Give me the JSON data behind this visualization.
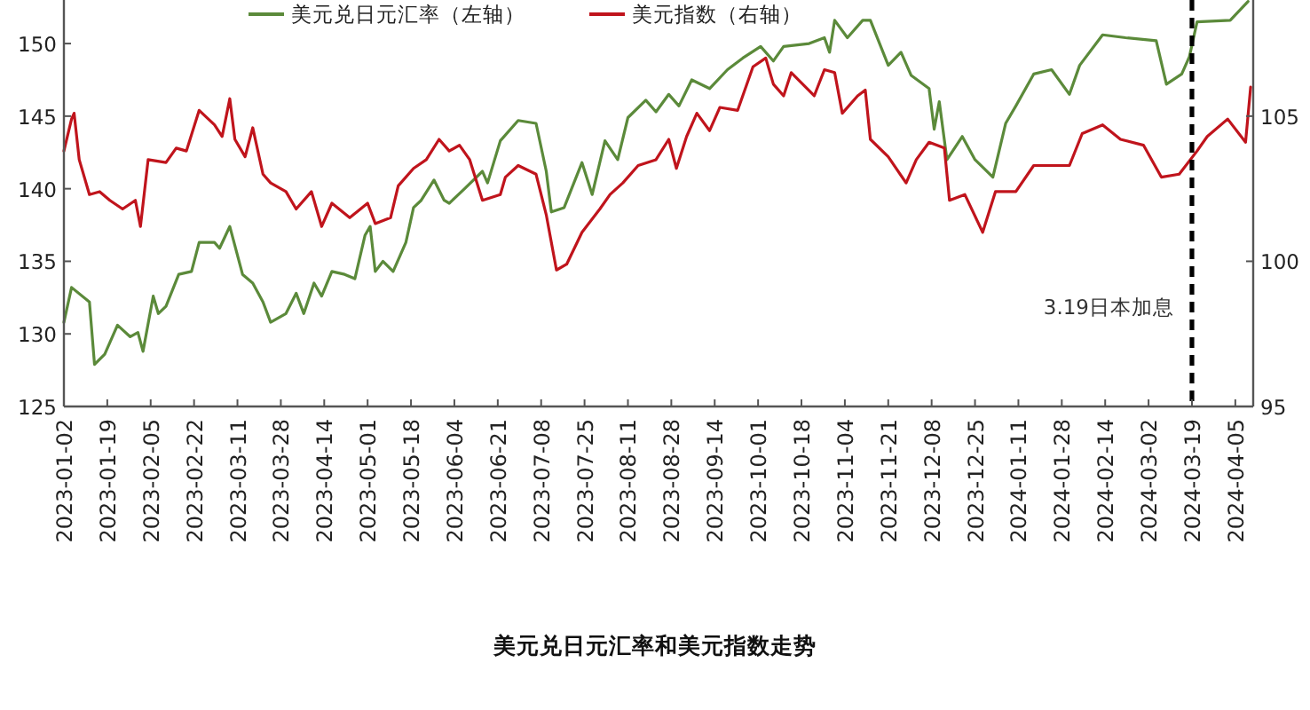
{
  "chart_data": {
    "type": "line",
    "title": "美元兑日元汇率和美元指数走势",
    "legend": "top",
    "grid": false,
    "xlim": [
      "2023-01-02",
      "2024-04-12"
    ],
    "xticks": [
      "2023-01-02",
      "2023-01-19",
      "2023-02-05",
      "2023-02-22",
      "2023-03-11",
      "2023-03-28",
      "2023-04-14",
      "2023-05-01",
      "2023-05-18",
      "2023-06-04",
      "2023-06-21",
      "2023-07-08",
      "2023-07-25",
      "2023-08-11",
      "2023-08-28",
      "2023-09-14",
      "2023-10-01",
      "2023-10-18",
      "2023-11-04",
      "2023-11-21",
      "2023-12-08",
      "2023-12-25",
      "2024-01-11",
      "2024-01-28",
      "2024-02-14",
      "2024-03-02",
      "2024-03-19",
      "2024-04-05"
    ],
    "ylim": [
      125,
      153
    ],
    "yticks": [
      125,
      130,
      135,
      140,
      145,
      150
    ],
    "y2lim": [
      95,
      109
    ],
    "y2ticks": [
      95,
      100,
      105
    ],
    "ref_lines": [
      {
        "axis": "x",
        "value": "2024-03-19",
        "label": "3.19日本加息",
        "color": "#000000",
        "line_style": "dashed"
      }
    ],
    "series": [
      {
        "name": "美元兑日元汇率（左轴）",
        "color": "#5b8a3a",
        "axis": "y",
        "x": [
          "2023-01-02",
          "2023-01-05",
          "2023-01-12",
          "2023-01-14",
          "2023-01-18",
          "2023-01-23",
          "2023-01-28",
          "2023-01-31",
          "2023-02-02",
          "2023-02-06",
          "2023-02-08",
          "2023-02-11",
          "2023-02-16",
          "2023-02-21",
          "2023-02-24",
          "2023-03-02",
          "2023-03-04",
          "2023-03-08",
          "2023-03-13",
          "2023-03-17",
          "2023-03-21",
          "2023-03-24",
          "2023-03-30",
          "2023-04-03",
          "2023-04-06",
          "2023-04-10",
          "2023-04-13",
          "2023-04-17",
          "2023-04-22",
          "2023-04-26",
          "2023-04-30",
          "2023-05-02",
          "2023-05-04",
          "2023-05-07",
          "2023-05-11",
          "2023-05-16",
          "2023-05-19",
          "2023-05-22",
          "2023-05-27",
          "2023-05-31",
          "2023-06-02",
          "2023-06-08",
          "2023-06-15",
          "2023-06-17",
          "2023-06-22",
          "2023-06-29",
          "2023-07-06",
          "2023-07-10",
          "2023-07-12",
          "2023-07-17",
          "2023-07-24",
          "2023-07-28",
          "2023-08-02",
          "2023-08-07",
          "2023-08-11",
          "2023-08-18",
          "2023-08-22",
          "2023-08-27",
          "2023-08-31",
          "2023-09-05",
          "2023-09-12",
          "2023-09-19",
          "2023-09-25",
          "2023-10-02",
          "2023-10-07",
          "2023-10-11",
          "2023-10-21",
          "2023-10-27",
          "2023-10-29",
          "2023-10-31",
          "2023-11-05",
          "2023-11-11",
          "2023-11-14",
          "2023-11-21",
          "2023-11-26",
          "2023-11-30",
          "2023-12-07",
          "2023-12-09",
          "2023-12-11",
          "2023-12-14",
          "2023-12-20",
          "2023-12-25",
          "2024-01-01",
          "2024-01-06",
          "2024-01-10",
          "2024-01-17",
          "2024-01-24",
          "2024-01-31",
          "2024-02-04",
          "2024-02-13",
          "2024-02-22",
          "2024-03-05",
          "2024-03-09",
          "2024-03-15",
          "2024-03-18",
          "2024-03-21",
          "2024-04-03",
          "2024-04-10"
        ],
        "values": [
          130.8,
          133.2,
          132.2,
          127.9,
          128.6,
          130.6,
          129.8,
          130.1,
          128.8,
          132.6,
          131.4,
          131.9,
          134.1,
          134.3,
          136.3,
          136.3,
          135.9,
          137.4,
          134.1,
          133.5,
          132.2,
          130.8,
          131.4,
          132.8,
          131.4,
          133.5,
          132.6,
          134.3,
          134.1,
          133.8,
          136.8,
          137.4,
          134.3,
          135.0,
          134.3,
          136.3,
          138.7,
          139.2,
          140.6,
          139.2,
          139.0,
          140.0,
          141.2,
          140.4,
          143.3,
          144.7,
          144.5,
          141.2,
          138.4,
          138.7,
          141.8,
          139.6,
          143.3,
          142.0,
          144.9,
          146.1,
          145.3,
          146.5,
          145.7,
          147.5,
          146.9,
          148.2,
          149.0,
          149.8,
          148.8,
          149.8,
          150.0,
          150.4,
          149.4,
          151.6,
          150.4,
          151.6,
          151.6,
          148.5,
          149.4,
          147.8,
          146.9,
          144.1,
          146.0,
          142.0,
          143.6,
          142.0,
          140.8,
          144.5,
          145.7,
          147.9,
          148.2,
          146.5,
          148.5,
          150.6,
          150.4,
          150.2,
          147.2,
          147.9,
          149.1,
          151.5,
          151.6,
          152.9
        ]
      },
      {
        "name": "美元指数（右轴）",
        "color": "#c0141c",
        "axis": "y2",
        "x": [
          "2023-01-02",
          "2023-01-05",
          "2023-01-06",
          "2023-01-08",
          "2023-01-12",
          "2023-01-16",
          "2023-01-20",
          "2023-01-25",
          "2023-01-30",
          "2023-02-01",
          "2023-02-04",
          "2023-02-11",
          "2023-02-15",
          "2023-02-19",
          "2023-02-24",
          "2023-03-02",
          "2023-03-05",
          "2023-03-08",
          "2023-03-10",
          "2023-03-14",
          "2023-03-17",
          "2023-03-21",
          "2023-03-24",
          "2023-03-30",
          "2023-04-03",
          "2023-04-09",
          "2023-04-13",
          "2023-04-17",
          "2023-04-24",
          "2023-05-01",
          "2023-05-04",
          "2023-05-10",
          "2023-05-13",
          "2023-05-19",
          "2023-05-24",
          "2023-05-29",
          "2023-06-02",
          "2023-06-06",
          "2023-06-10",
          "2023-06-15",
          "2023-06-22",
          "2023-06-24",
          "2023-06-29",
          "2023-07-06",
          "2023-07-10",
          "2023-07-14",
          "2023-07-18",
          "2023-07-24",
          "2023-07-31",
          "2023-08-04",
          "2023-08-09",
          "2023-08-15",
          "2023-08-22",
          "2023-08-27",
          "2023-08-30",
          "2023-09-03",
          "2023-09-07",
          "2023-09-12",
          "2023-09-16",
          "2023-09-23",
          "2023-09-29",
          "2023-10-04",
          "2023-10-07",
          "2023-10-11",
          "2023-10-14",
          "2023-10-23",
          "2023-10-27",
          "2023-10-31",
          "2023-11-03",
          "2023-11-09",
          "2023-11-12",
          "2023-11-14",
          "2023-11-21",
          "2023-11-28",
          "2023-12-02",
          "2023-12-07",
          "2023-12-13",
          "2023-12-15",
          "2023-12-21",
          "2023-12-28",
          "2024-01-02",
          "2024-01-10",
          "2024-01-17",
          "2024-01-31",
          "2024-02-05",
          "2024-02-13",
          "2024-02-20",
          "2024-02-29",
          "2024-03-07",
          "2024-03-14",
          "2024-03-21",
          "2024-03-25",
          "2024-04-02",
          "2024-04-09",
          "2024-04-11"
        ],
        "values": [
          103.8,
          104.9,
          105.1,
          103.5,
          102.3,
          102.4,
          102.1,
          101.8,
          102.1,
          101.2,
          103.5,
          103.4,
          103.9,
          103.8,
          105.2,
          104.7,
          104.3,
          105.6,
          104.2,
          103.6,
          104.6,
          103.0,
          102.7,
          102.4,
          101.8,
          102.4,
          101.2,
          102.0,
          101.5,
          102.0,
          101.3,
          101.5,
          102.6,
          103.2,
          103.5,
          104.2,
          103.8,
          104.0,
          103.5,
          102.1,
          102.3,
          102.9,
          103.3,
          103.0,
          101.6,
          99.7,
          99.9,
          101.0,
          101.8,
          102.3,
          102.7,
          103.3,
          103.5,
          104.2,
          103.2,
          104.3,
          105.1,
          104.5,
          105.3,
          105.2,
          106.7,
          107.0,
          106.1,
          105.7,
          106.5,
          105.7,
          106.6,
          106.5,
          105.1,
          105.7,
          105.9,
          104.2,
          103.6,
          102.7,
          103.5,
          104.1,
          103.9,
          102.1,
          102.3,
          101.0,
          102.4,
          102.4,
          103.3,
          103.3,
          104.4,
          104.7,
          104.2,
          104.0,
          102.9,
          103.0,
          103.8,
          104.3,
          104.9,
          104.1,
          106.0
        ]
      }
    ]
  }
}
